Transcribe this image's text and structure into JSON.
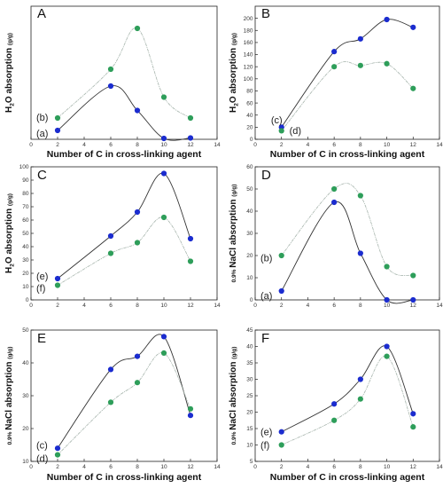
{
  "chart_data": [
    {
      "type": "line",
      "panel": "A",
      "xlabel": "Number of C in cross-linking agent",
      "ylabel": "H2O absorption",
      "ylabel_unit": "(g/g)",
      "xlim": [
        0,
        14
      ],
      "xticks": [
        0,
        2,
        4,
        6,
        8,
        10,
        12,
        14
      ],
      "ylim": [
        0,
        300
      ],
      "yticks": [],
      "series": [
        {
          "label": "(a)",
          "color": "#1b2ccf",
          "style": "solid",
          "x": [
            2,
            6,
            8,
            10,
            12
          ],
          "values": [
            20,
            120,
            65,
            2,
            3
          ]
        },
        {
          "label": "(b)",
          "color": "#2e9e5a",
          "style": "dashdot",
          "x": [
            2,
            6,
            8,
            10,
            12
          ],
          "values": [
            48,
            158,
            250,
            95,
            48
          ]
        }
      ],
      "annotations": [
        {
          "text": "(b)",
          "x": 0.4,
          "y": 50
        },
        {
          "text": "(a)",
          "x": 0.4,
          "y": 14
        }
      ]
    },
    {
      "type": "line",
      "panel": "B",
      "xlabel": "Number of C in cross-linking agent",
      "ylabel": "H2O absorption",
      "ylabel_unit": "(g/g)",
      "xlim": [
        0,
        14
      ],
      "xticks": [
        0,
        2,
        4,
        6,
        8,
        10,
        12,
        14
      ],
      "ylim": [
        0,
        220
      ],
      "yticks": [
        0,
        20,
        40,
        60,
        80,
        100,
        120,
        140,
        160,
        180,
        200
      ],
      "series": [
        {
          "label": "(c)",
          "color": "#1b2ccf",
          "style": "solid",
          "x": [
            2,
            6,
            8,
            10,
            12
          ],
          "values": [
            20,
            145,
            166,
            198,
            185
          ]
        },
        {
          "label": "(d)",
          "color": "#2e9e5a",
          "style": "dashdot",
          "x": [
            2,
            6,
            8,
            10,
            12
          ],
          "values": [
            14,
            120,
            122,
            125,
            84
          ]
        }
      ],
      "annotations": [
        {
          "text": "(c)",
          "x": 1.2,
          "y": 32
        },
        {
          "text": "(d)",
          "x": 2.6,
          "y": 15
        }
      ]
    },
    {
      "type": "line",
      "panel": "C",
      "xlabel": "",
      "ylabel": "H2O absorption",
      "ylabel_unit": "(g/g)",
      "xlim": [
        0,
        14
      ],
      "xticks": [
        0,
        2,
        4,
        6,
        8,
        10,
        12,
        14
      ],
      "ylim": [
        0,
        100
      ],
      "yticks": [
        0,
        10,
        20,
        30,
        40,
        50,
        60,
        70,
        80,
        90,
        100
      ],
      "series": [
        {
          "label": "(e)",
          "color": "#1b2ccf",
          "style": "solid",
          "x": [
            2,
            6,
            8,
            10,
            12
          ],
          "values": [
            16,
            48,
            66,
            95,
            46
          ]
        },
        {
          "label": "(f)",
          "color": "#2e9e5a",
          "style": "dashdot",
          "x": [
            2,
            6,
            8,
            10,
            12
          ],
          "values": [
            11,
            35,
            43,
            62,
            29
          ]
        }
      ],
      "annotations": [
        {
          "text": "(e)",
          "x": 0.4,
          "y": 18
        },
        {
          "text": "(f)",
          "x": 0.4,
          "y": 9
        }
      ]
    },
    {
      "type": "line",
      "panel": "D",
      "xlabel": "",
      "ylabel": "NaCl absorption",
      "ylabel_prefix": "0.9%",
      "ylabel_unit": "(g/g)",
      "xlim": [
        0,
        14
      ],
      "xticks": [
        0,
        2,
        4,
        6,
        8,
        10,
        12,
        14
      ],
      "ylim": [
        0,
        60
      ],
      "yticks": [
        0,
        10,
        20,
        30,
        40,
        50,
        60
      ],
      "series": [
        {
          "label": "(a)",
          "color": "#1b2ccf",
          "style": "solid",
          "x": [
            2,
            6,
            8,
            10,
            12
          ],
          "values": [
            4,
            44,
            21,
            0,
            0
          ]
        },
        {
          "label": "(b)",
          "color": "#2e9e5a",
          "style": "dashdot",
          "x": [
            2,
            6,
            8,
            10,
            12
          ],
          "values": [
            20,
            50,
            47,
            15,
            11
          ]
        }
      ],
      "annotations": [
        {
          "text": "(b)",
          "x": 0.4,
          "y": 19
        },
        {
          "text": "(a)",
          "x": 0.4,
          "y": 2
        }
      ]
    },
    {
      "type": "line",
      "panel": "E",
      "xlabel": "Number of C in cross-linking agent",
      "ylabel": "NaCl absorption",
      "ylabel_prefix": "0.9%",
      "ylabel_unit": "(g/g)",
      "xlim": [
        0,
        14
      ],
      "xticks": [
        0,
        2,
        4,
        6,
        8,
        10,
        12,
        14
      ],
      "ylim": [
        10,
        50
      ],
      "yticks": [
        10,
        20,
        30,
        40,
        50
      ],
      "series": [
        {
          "label": "(c)",
          "color": "#1b2ccf",
          "style": "solid",
          "x": [
            2,
            6,
            8,
            10,
            12
          ],
          "values": [
            14,
            38,
            42,
            48,
            24
          ]
        },
        {
          "label": "(d)",
          "color": "#2e9e5a",
          "style": "dashdot",
          "x": [
            2,
            6,
            8,
            10,
            12
          ],
          "values": [
            12,
            28,
            34,
            43,
            26
          ]
        }
      ],
      "annotations": [
        {
          "text": "(c)",
          "x": 0.4,
          "y": 15
        },
        {
          "text": "(d)",
          "x": 0.4,
          "y": 11
        }
      ]
    },
    {
      "type": "line",
      "panel": "F",
      "xlabel": "Number of C in cross-linking agent",
      "ylabel": "NaCl absorption",
      "ylabel_prefix": "0.9%",
      "ylabel_unit": "(g/g)",
      "xlim": [
        0,
        14
      ],
      "xticks": [
        0,
        2,
        4,
        6,
        8,
        10,
        12,
        14
      ],
      "ylim": [
        5,
        45
      ],
      "yticks": [
        5,
        10,
        15,
        20,
        25,
        30,
        35,
        40,
        45
      ],
      "series": [
        {
          "label": "(e)",
          "color": "#1b2ccf",
          "style": "solid",
          "x": [
            2,
            6,
            8,
            10,
            12
          ],
          "values": [
            14,
            22.5,
            30,
            40,
            19.5
          ]
        },
        {
          "label": "(f)",
          "color": "#2e9e5a",
          "style": "dashdot",
          "x": [
            2,
            6,
            8,
            10,
            12
          ],
          "values": [
            10,
            17.5,
            24,
            37,
            15.5
          ]
        }
      ],
      "annotations": [
        {
          "text": "(e)",
          "x": 0.4,
          "y": 14
        },
        {
          "text": "(f)",
          "x": 0.4,
          "y": 10
        }
      ]
    }
  ]
}
